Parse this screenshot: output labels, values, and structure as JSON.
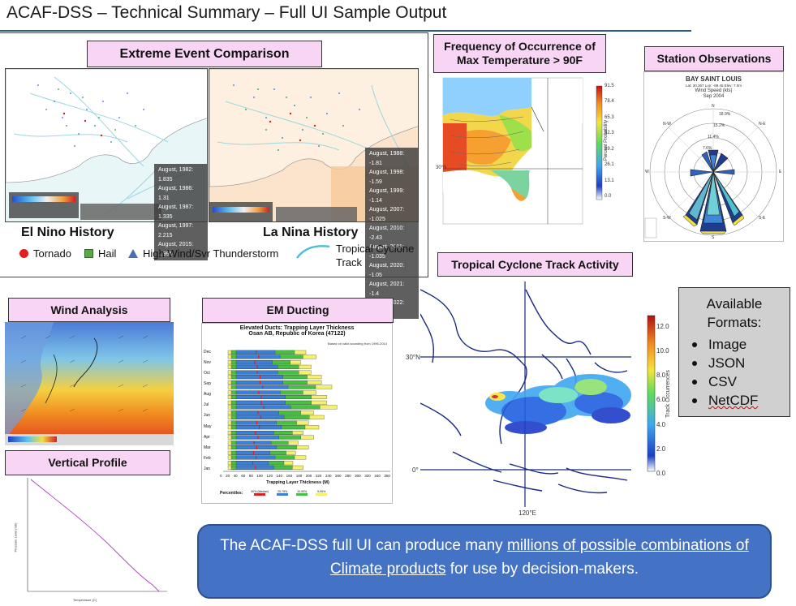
{
  "title": "ACAF-DSS – Technical Summary – Full UI Sample Output",
  "extreme": {
    "label": "Extreme Event Comparison",
    "el_nino": {
      "caption": "El Nino History",
      "entries": [
        "August, 1982: 1.835",
        "August, 1986: 1.31",
        "August, 1987: 1.335",
        "August, 1997: 2.215",
        "August, 2015: 1.995"
      ]
    },
    "la_nina": {
      "caption": "La Nina History",
      "entries": [
        "August, 1988: -1.81",
        "August, 1998: -1.59",
        "August, 1999: -1.14",
        "August, 2007: -1.025",
        "August, 2010: -2.43",
        "August, 2011: -1.035",
        "August, 2020: -1.05",
        "August, 2021: -1.4",
        "August, 2022: -1.775"
      ]
    },
    "legend": {
      "tornado": "Tornado",
      "hail": "Hail",
      "wind": "High Wind/Svr Thunderstorm",
      "cyclone": "Tropical Cyclone Track"
    },
    "colors": {
      "tornado": "#e02020",
      "hail": "#5aa846",
      "wind": "#4a6fb5",
      "cyclone": "#49c0d0"
    }
  },
  "freq": {
    "label": "Frequency of Occurrence of Max Temperature > 90F",
    "lat_label": "30°N",
    "colorbar_ticks": [
      "91.5",
      "78.4",
      "65.3",
      "52.3",
      "39.2",
      "26.1",
      "13.1",
      "0.0"
    ],
    "colorbar_title": "Percent Probability"
  },
  "station": {
    "label": "Station Observations",
    "chart_title": "BAY SAINT LOUIS",
    "coords": "Lat: 30.367 Lon: -89.45 Elev: 7.0m",
    "subtitle": "Wind Speed (kts)",
    "period": "Sep 2004",
    "rings": [
      "18.9%",
      "15.2%",
      "11.4%",
      "7.6%"
    ],
    "directions": [
      "N",
      "N-E",
      "E",
      "S-E",
      "S",
      "S-W",
      "W",
      "N-W"
    ]
  },
  "cyclone": {
    "label": "Tropical Cyclone Track Activity",
    "lat_labels": [
      "30°N",
      "0°"
    ],
    "lon_label": "120°E",
    "colorbar_ticks": [
      "12.0",
      "10.0",
      "8.0",
      "6.0",
      "4.0",
      "2.0",
      "0.0"
    ],
    "colorbar_title": "Track Occurrences"
  },
  "formats": {
    "title": "Available Formats:",
    "items": [
      "Image",
      "JSON",
      "CSV",
      "NetCDF"
    ]
  },
  "wind": {
    "label": "Wind Analysis"
  },
  "em": {
    "label": "EM Ducting",
    "chart_title": "Elevated Ducts: Trapping Layer Thickness",
    "chart_subtitle": "Osan AB, Republic of Korea (47122)",
    "note": "Based on valid sounding from 1996-2014",
    "months": [
      "Dec",
      "Nov",
      "Oct",
      "Sep",
      "Aug",
      "Jul",
      "Jun",
      "May",
      "Apr",
      "Mar",
      "Feb",
      "Jan"
    ],
    "xlabel": "Trapping Layer Thickness (M)",
    "ticks": [
      "0",
      "20",
      "40",
      "60",
      "80",
      "100",
      "120",
      "140",
      "160",
      "180",
      "200",
      "220",
      "240",
      "260",
      "280",
      "300",
      "320",
      "340",
      "360"
    ],
    "percentiles_label": "Percentiles:",
    "percentiles": [
      "50% (Median)",
      "25-75%",
      "10-90%",
      "5-95%"
    ],
    "percentile_colors": [
      "#e02020",
      "#3d7fd6",
      "#46c040",
      "#f4f06a"
    ]
  },
  "vertical": {
    "label": "Vertical Profile",
    "xlabel": "Temperature (C)",
    "ylabel": "Pressure Level (mb)"
  },
  "callout": {
    "part1": "The ACAF-DSS full UI can produce many ",
    "link1": "millions of possible combinations of Climate products",
    "part2": " for use by decision-makers."
  }
}
